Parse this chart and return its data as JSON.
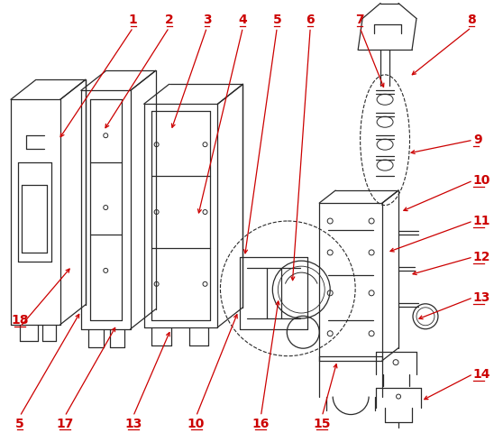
{
  "bg_color": "#ffffff",
  "line_color": "#2a2a2a",
  "arrow_color": "#cc0000",
  "label_color": "#cc0000",
  "figsize": [
    5.48,
    4.9
  ],
  "dpi": 100
}
